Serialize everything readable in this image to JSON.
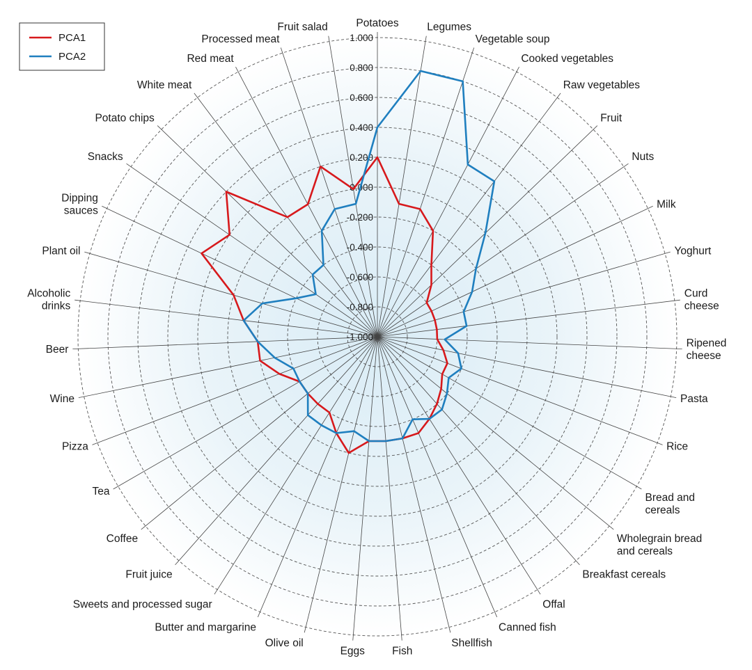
{
  "chart_data": {
    "type": "radar",
    "title": "",
    "rlim": [
      -1.0,
      1.0
    ],
    "r_ticks": [
      "-1.000",
      "-0.800",
      "-0.600",
      "-0.400",
      "-0.200",
      "0.000",
      "0.200",
      "0.400",
      "0.600",
      "0.800",
      "1.000"
    ],
    "r_tick_values": [
      -1.0,
      -0.8,
      -0.6,
      -0.4,
      -0.2,
      0.0,
      0.2,
      0.4,
      0.6,
      0.8,
      1.0
    ],
    "grid": "dashed circles",
    "legend_position": "top-left",
    "categories": [
      "Potatoes",
      "Legumes",
      "Vegetable soup",
      "Cooked vegetables",
      "Raw vegetables",
      "Fruit",
      "Nuts",
      "Milk",
      "Yoghurt",
      "Curd\ncheese",
      "Ripened\ncheese",
      "Pasta",
      "Rice",
      "Bread and\ncereals",
      "Wholegrain bread\nand cereals",
      "Breakfast cereals",
      "Offal",
      "Canned fish",
      "Shellfish",
      "Fish",
      "Eggs",
      "Olive oil",
      "Butter and margarine",
      "Sweets and processed sugar",
      "Fruit juice",
      "Coffee",
      "Tea",
      "Pizza",
      "Wine",
      "Beer",
      "Alcoholic\ndrinks",
      "Plant oil",
      "Dipping\nsauces",
      "Snacks",
      "Potato chips",
      "White meat",
      "Red meat",
      "Processed meat",
      "Fruit salad"
    ],
    "series": [
      {
        "name": "PCA1",
        "color": "#d7191c",
        "values": [
          0.2,
          -0.1,
          -0.1,
          -0.2,
          -0.4,
          -0.5,
          -0.6,
          -0.6,
          -0.6,
          -0.6,
          -0.6,
          -0.55,
          -0.5,
          -0.5,
          -0.45,
          -0.4,
          -0.35,
          -0.3,
          -0.3,
          -0.3,
          -0.3,
          -0.2,
          -0.3,
          -0.4,
          -0.4,
          -0.4,
          -0.4,
          -0.3,
          -0.2,
          -0.2,
          -0.1,
          0.0,
          0.3,
          0.2,
          0.4,
          0.0,
          0.0,
          0.2,
          0.0
        ]
      },
      {
        "name": "PCA2",
        "color": "#1f7fbf",
        "values": [
          0.4,
          0.8,
          0.8,
          0.3,
          0.3,
          0.0,
          -0.2,
          -0.3,
          -0.4,
          -0.4,
          -0.55,
          -0.45,
          -0.4,
          -0.45,
          -0.4,
          -0.35,
          -0.35,
          -0.4,
          -0.3,
          -0.3,
          -0.3,
          -0.35,
          -0.3,
          -0.3,
          -0.3,
          -0.4,
          -0.4,
          -0.4,
          -0.3,
          -0.2,
          -0.1,
          -0.2,
          -0.4,
          -0.5,
          -0.4,
          -0.4,
          -0.2,
          -0.1,
          -0.1
        ]
      }
    ]
  },
  "legend": {
    "items": [
      {
        "label": "PCA1",
        "color": "#d7191c"
      },
      {
        "label": "PCA2",
        "color": "#1f7fbf"
      }
    ]
  },
  "colors": {
    "grid_circle": "#555555",
    "spoke": "#444444",
    "background_center": "#e6f2f8"
  }
}
